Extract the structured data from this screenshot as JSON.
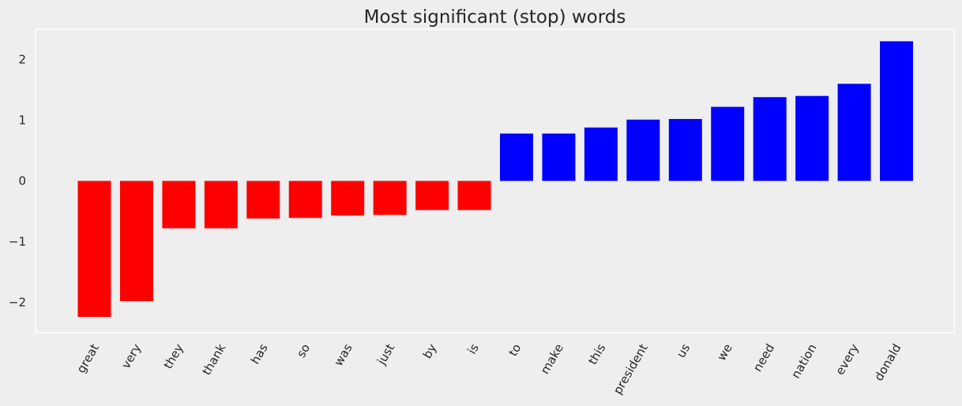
{
  "chart_data": {
    "type": "bar",
    "title": "Most significant (stop) words",
    "xlabel": "",
    "ylabel": "",
    "categories": [
      "great",
      "very",
      "they",
      "thank",
      "has",
      "so",
      "was",
      "just",
      "by",
      "is",
      "to",
      "make",
      "this",
      "president",
      "us",
      "we",
      "need",
      "nation",
      "every",
      "donald"
    ],
    "values": [
      -2.24,
      -1.98,
      -0.78,
      -0.78,
      -0.62,
      -0.61,
      -0.57,
      -0.56,
      -0.48,
      -0.48,
      0.78,
      0.78,
      0.88,
      1.01,
      1.02,
      1.22,
      1.38,
      1.4,
      1.6,
      2.3
    ],
    "ylim": [
      -2.5,
      2.5
    ],
    "yticks": [
      -2,
      -1,
      0,
      1,
      2
    ],
    "ytick_labels": [
      "−2",
      "−1",
      "0",
      "1",
      "2"
    ],
    "grid": false,
    "colors": {
      "positive": "#0000ff",
      "negative": "#ff0000",
      "background": "#eeeeee",
      "frame": "#ffffff"
    }
  }
}
